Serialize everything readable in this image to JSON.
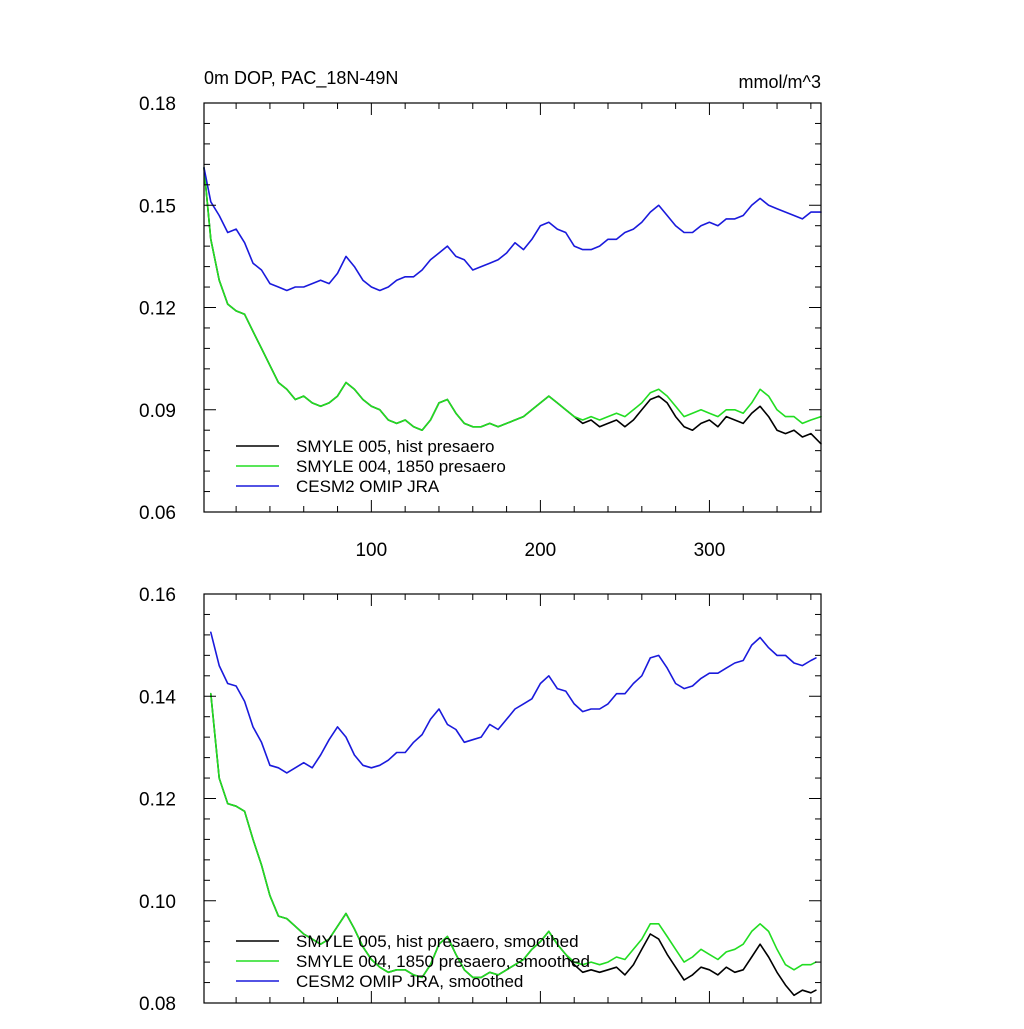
{
  "chart_data": [
    {
      "type": "line",
      "title": "0m DOP, PAC_18N-49N",
      "units": "mmol/m^3",
      "xlabel": "",
      "ylabel": "",
      "xlim": [
        1,
        366
      ],
      "ylim": [
        0.06,
        0.18
      ],
      "xticks": [
        100,
        200,
        300
      ],
      "xtick_labels": [
        "100",
        "200",
        "300"
      ],
      "yticks": [
        0.06,
        0.09,
        0.12,
        0.15,
        0.18
      ],
      "ytick_labels": [
        "0.06",
        "0.09",
        "0.12",
        "0.15",
        "0.18"
      ],
      "grid": false,
      "legend_position": "bottom-left",
      "series": [
        {
          "name": "SMYLE 005, hist presaero",
          "color": "#000000",
          "x": [
            1,
            5,
            10,
            15,
            20,
            25,
            30,
            35,
            40,
            45,
            50,
            55,
            60,
            65,
            70,
            75,
            80,
            85,
            90,
            95,
            100,
            105,
            110,
            115,
            120,
            125,
            130,
            135,
            140,
            145,
            150,
            155,
            160,
            165,
            170,
            175,
            180,
            185,
            190,
            195,
            200,
            205,
            210,
            215,
            220,
            225,
            230,
            235,
            240,
            245,
            250,
            255,
            260,
            265,
            270,
            275,
            280,
            285,
            290,
            295,
            300,
            305,
            310,
            315,
            320,
            325,
            330,
            335,
            340,
            345,
            350,
            355,
            360,
            366
          ],
          "y": [
            0.161,
            0.14,
            0.128,
            0.121,
            0.119,
            0.118,
            0.113,
            0.108,
            0.103,
            0.098,
            0.096,
            0.093,
            0.094,
            0.092,
            0.091,
            0.092,
            0.094,
            0.098,
            0.096,
            0.093,
            0.091,
            0.09,
            0.087,
            0.086,
            0.087,
            0.085,
            0.084,
            0.087,
            0.092,
            0.093,
            0.089,
            0.086,
            0.085,
            0.085,
            0.086,
            0.085,
            0.086,
            0.087,
            0.088,
            0.09,
            0.092,
            0.094,
            0.092,
            0.09,
            0.088,
            0.086,
            0.087,
            0.085,
            0.086,
            0.087,
            0.085,
            0.087,
            0.09,
            0.093,
            0.094,
            0.092,
            0.088,
            0.085,
            0.084,
            0.086,
            0.087,
            0.085,
            0.088,
            0.087,
            0.086,
            0.089,
            0.091,
            0.088,
            0.084,
            0.083,
            0.084,
            0.082,
            0.083,
            0.08
          ]
        },
        {
          "name": "SMYLE 004, 1850 presaero",
          "color": "#22dd22",
          "x": [
            1,
            5,
            10,
            15,
            20,
            25,
            30,
            35,
            40,
            45,
            50,
            55,
            60,
            65,
            70,
            75,
            80,
            85,
            90,
            95,
            100,
            105,
            110,
            115,
            120,
            125,
            130,
            135,
            140,
            145,
            150,
            155,
            160,
            165,
            170,
            175,
            180,
            185,
            190,
            195,
            200,
            205,
            210,
            215,
            220,
            225,
            230,
            235,
            240,
            245,
            250,
            255,
            260,
            265,
            270,
            275,
            280,
            285,
            290,
            295,
            300,
            305,
            310,
            315,
            320,
            325,
            330,
            335,
            340,
            345,
            350,
            355,
            360,
            366
          ],
          "y": [
            0.161,
            0.14,
            0.128,
            0.121,
            0.119,
            0.118,
            0.113,
            0.108,
            0.103,
            0.098,
            0.096,
            0.093,
            0.094,
            0.092,
            0.091,
            0.092,
            0.094,
            0.098,
            0.096,
            0.093,
            0.091,
            0.09,
            0.087,
            0.086,
            0.087,
            0.085,
            0.084,
            0.087,
            0.092,
            0.093,
            0.089,
            0.086,
            0.085,
            0.085,
            0.086,
            0.085,
            0.086,
            0.087,
            0.088,
            0.09,
            0.092,
            0.094,
            0.092,
            0.09,
            0.088,
            0.087,
            0.088,
            0.087,
            0.088,
            0.089,
            0.088,
            0.09,
            0.092,
            0.095,
            0.096,
            0.094,
            0.091,
            0.088,
            0.089,
            0.09,
            0.089,
            0.088,
            0.09,
            0.09,
            0.089,
            0.092,
            0.096,
            0.094,
            0.09,
            0.088,
            0.088,
            0.086,
            0.087,
            0.088
          ]
        },
        {
          "name": "CESM2 OMIP JRA",
          "color": "#1a1adc",
          "x": [
            1,
            5,
            10,
            15,
            20,
            25,
            30,
            35,
            40,
            45,
            50,
            55,
            60,
            65,
            70,
            75,
            80,
            85,
            90,
            95,
            100,
            105,
            110,
            115,
            120,
            125,
            130,
            135,
            140,
            145,
            150,
            155,
            160,
            165,
            170,
            175,
            180,
            185,
            190,
            195,
            200,
            205,
            210,
            215,
            220,
            225,
            230,
            235,
            240,
            245,
            250,
            255,
            260,
            265,
            270,
            275,
            280,
            285,
            290,
            295,
            300,
            305,
            310,
            315,
            320,
            325,
            330,
            335,
            340,
            345,
            350,
            355,
            360,
            366
          ],
          "y": [
            0.161,
            0.151,
            0.147,
            0.142,
            0.143,
            0.139,
            0.133,
            0.131,
            0.127,
            0.126,
            0.125,
            0.126,
            0.126,
            0.127,
            0.128,
            0.127,
            0.13,
            0.135,
            0.132,
            0.128,
            0.126,
            0.125,
            0.126,
            0.128,
            0.129,
            0.129,
            0.131,
            0.134,
            0.136,
            0.138,
            0.135,
            0.134,
            0.131,
            0.132,
            0.133,
            0.134,
            0.136,
            0.139,
            0.137,
            0.14,
            0.144,
            0.145,
            0.143,
            0.142,
            0.138,
            0.137,
            0.137,
            0.138,
            0.14,
            0.14,
            0.142,
            0.143,
            0.145,
            0.148,
            0.15,
            0.147,
            0.144,
            0.142,
            0.142,
            0.144,
            0.145,
            0.144,
            0.146,
            0.146,
            0.147,
            0.15,
            0.152,
            0.15,
            0.149,
            0.148,
            0.147,
            0.146,
            0.148,
            0.148
          ]
        }
      ]
    },
    {
      "type": "line",
      "title": "",
      "units": "",
      "xlabel": "",
      "ylabel": "",
      "xlim": [
        1,
        366
      ],
      "ylim": [
        0.08,
        0.16
      ],
      "xticks": [
        100,
        200,
        300
      ],
      "xtick_labels": [],
      "yticks": [
        0.08,
        0.1,
        0.12,
        0.14,
        0.16
      ],
      "ytick_labels": [
        "0.08",
        "0.10",
        "0.12",
        "0.14",
        "0.16"
      ],
      "grid": false,
      "legend_position": "bottom-left",
      "series": [
        {
          "name": "SMYLE 005, hist presaero, smoothed",
          "color": "#000000",
          "x": [
            5,
            10,
            15,
            20,
            25,
            30,
            35,
            40,
            45,
            50,
            55,
            60,
            65,
            70,
            75,
            80,
            85,
            90,
            95,
            100,
            105,
            110,
            115,
            120,
            125,
            130,
            135,
            140,
            145,
            150,
            155,
            160,
            165,
            170,
            175,
            180,
            185,
            190,
            195,
            200,
            205,
            210,
            215,
            220,
            225,
            230,
            235,
            240,
            245,
            250,
            255,
            260,
            265,
            270,
            275,
            280,
            285,
            290,
            295,
            300,
            305,
            310,
            315,
            320,
            325,
            330,
            335,
            340,
            345,
            350,
            355,
            360,
            363
          ],
          "y": [
            0.1405,
            0.124,
            0.119,
            0.1185,
            0.1175,
            0.112,
            0.107,
            0.101,
            0.097,
            0.0965,
            0.095,
            0.0935,
            0.0925,
            0.0915,
            0.0925,
            0.095,
            0.0975,
            0.0945,
            0.091,
            0.0885,
            0.087,
            0.086,
            0.0865,
            0.0865,
            0.0855,
            0.085,
            0.0875,
            0.0915,
            0.093,
            0.0895,
            0.0865,
            0.085,
            0.085,
            0.086,
            0.0855,
            0.0865,
            0.0875,
            0.0885,
            0.0905,
            0.092,
            0.094,
            0.0915,
            0.0895,
            0.0875,
            0.086,
            0.0865,
            0.086,
            0.0865,
            0.087,
            0.0855,
            0.0875,
            0.0905,
            0.0935,
            0.0925,
            0.0895,
            0.087,
            0.0845,
            0.0855,
            0.087,
            0.0865,
            0.0855,
            0.087,
            0.086,
            0.0865,
            0.089,
            0.0915,
            0.089,
            0.086,
            0.0835,
            0.0815,
            0.0825,
            0.082,
            0.0825
          ]
        },
        {
          "name": "SMYLE 004, 1850 presaero, smoothed",
          "color": "#22dd22",
          "x": [
            5,
            10,
            15,
            20,
            25,
            30,
            35,
            40,
            45,
            50,
            55,
            60,
            65,
            70,
            75,
            80,
            85,
            90,
            95,
            100,
            105,
            110,
            115,
            120,
            125,
            130,
            135,
            140,
            145,
            150,
            155,
            160,
            165,
            170,
            175,
            180,
            185,
            190,
            195,
            200,
            205,
            210,
            215,
            220,
            225,
            230,
            235,
            240,
            245,
            250,
            255,
            260,
            265,
            270,
            275,
            280,
            285,
            290,
            295,
            300,
            305,
            310,
            315,
            320,
            325,
            330,
            335,
            340,
            345,
            350,
            355,
            360,
            363
          ],
          "y": [
            0.1405,
            0.124,
            0.119,
            0.1185,
            0.1175,
            0.112,
            0.107,
            0.101,
            0.097,
            0.0965,
            0.095,
            0.0935,
            0.0925,
            0.0915,
            0.0925,
            0.095,
            0.0975,
            0.0945,
            0.091,
            0.0885,
            0.087,
            0.086,
            0.0865,
            0.0865,
            0.0855,
            0.085,
            0.0875,
            0.0915,
            0.093,
            0.0895,
            0.0865,
            0.085,
            0.085,
            0.086,
            0.0855,
            0.0865,
            0.0875,
            0.0885,
            0.0905,
            0.092,
            0.094,
            0.0915,
            0.0895,
            0.088,
            0.0875,
            0.088,
            0.0875,
            0.088,
            0.089,
            0.0885,
            0.0905,
            0.0925,
            0.0955,
            0.0955,
            0.093,
            0.0905,
            0.088,
            0.089,
            0.0905,
            0.0895,
            0.0885,
            0.09,
            0.0905,
            0.0915,
            0.094,
            0.0955,
            0.094,
            0.0905,
            0.0875,
            0.0865,
            0.0875,
            0.0875,
            0.088
          ]
        },
        {
          "name": "CESM2 OMIP JRA, smoothed",
          "color": "#1a1adc",
          "x": [
            5,
            10,
            15,
            20,
            25,
            30,
            35,
            40,
            45,
            50,
            55,
            60,
            65,
            70,
            75,
            80,
            85,
            90,
            95,
            100,
            105,
            110,
            115,
            120,
            125,
            130,
            135,
            140,
            145,
            150,
            155,
            160,
            165,
            170,
            175,
            180,
            185,
            190,
            195,
            200,
            205,
            210,
            215,
            220,
            225,
            230,
            235,
            240,
            245,
            250,
            255,
            260,
            265,
            270,
            275,
            280,
            285,
            290,
            295,
            300,
            305,
            310,
            315,
            320,
            325,
            330,
            335,
            340,
            345,
            350,
            355,
            360,
            363
          ],
          "y": [
            0.1525,
            0.146,
            0.1425,
            0.142,
            0.139,
            0.134,
            0.131,
            0.1265,
            0.126,
            0.125,
            0.126,
            0.127,
            0.126,
            0.1285,
            0.1315,
            0.134,
            0.132,
            0.1285,
            0.1265,
            0.126,
            0.1265,
            0.1275,
            0.129,
            0.129,
            0.131,
            0.1325,
            0.1355,
            0.1375,
            0.1345,
            0.1335,
            0.131,
            0.1315,
            0.132,
            0.1345,
            0.1335,
            0.1355,
            0.1375,
            0.1385,
            0.1395,
            0.1425,
            0.144,
            0.1415,
            0.141,
            0.1385,
            0.137,
            0.1375,
            0.1375,
            0.1385,
            0.1405,
            0.1405,
            0.1425,
            0.144,
            0.1475,
            0.148,
            0.1455,
            0.1425,
            0.1415,
            0.142,
            0.1435,
            0.1445,
            0.1445,
            0.1455,
            0.1465,
            0.147,
            0.15,
            0.1515,
            0.1495,
            0.148,
            0.148,
            0.1465,
            0.146,
            0.147,
            0.1475
          ]
        }
      ]
    }
  ]
}
